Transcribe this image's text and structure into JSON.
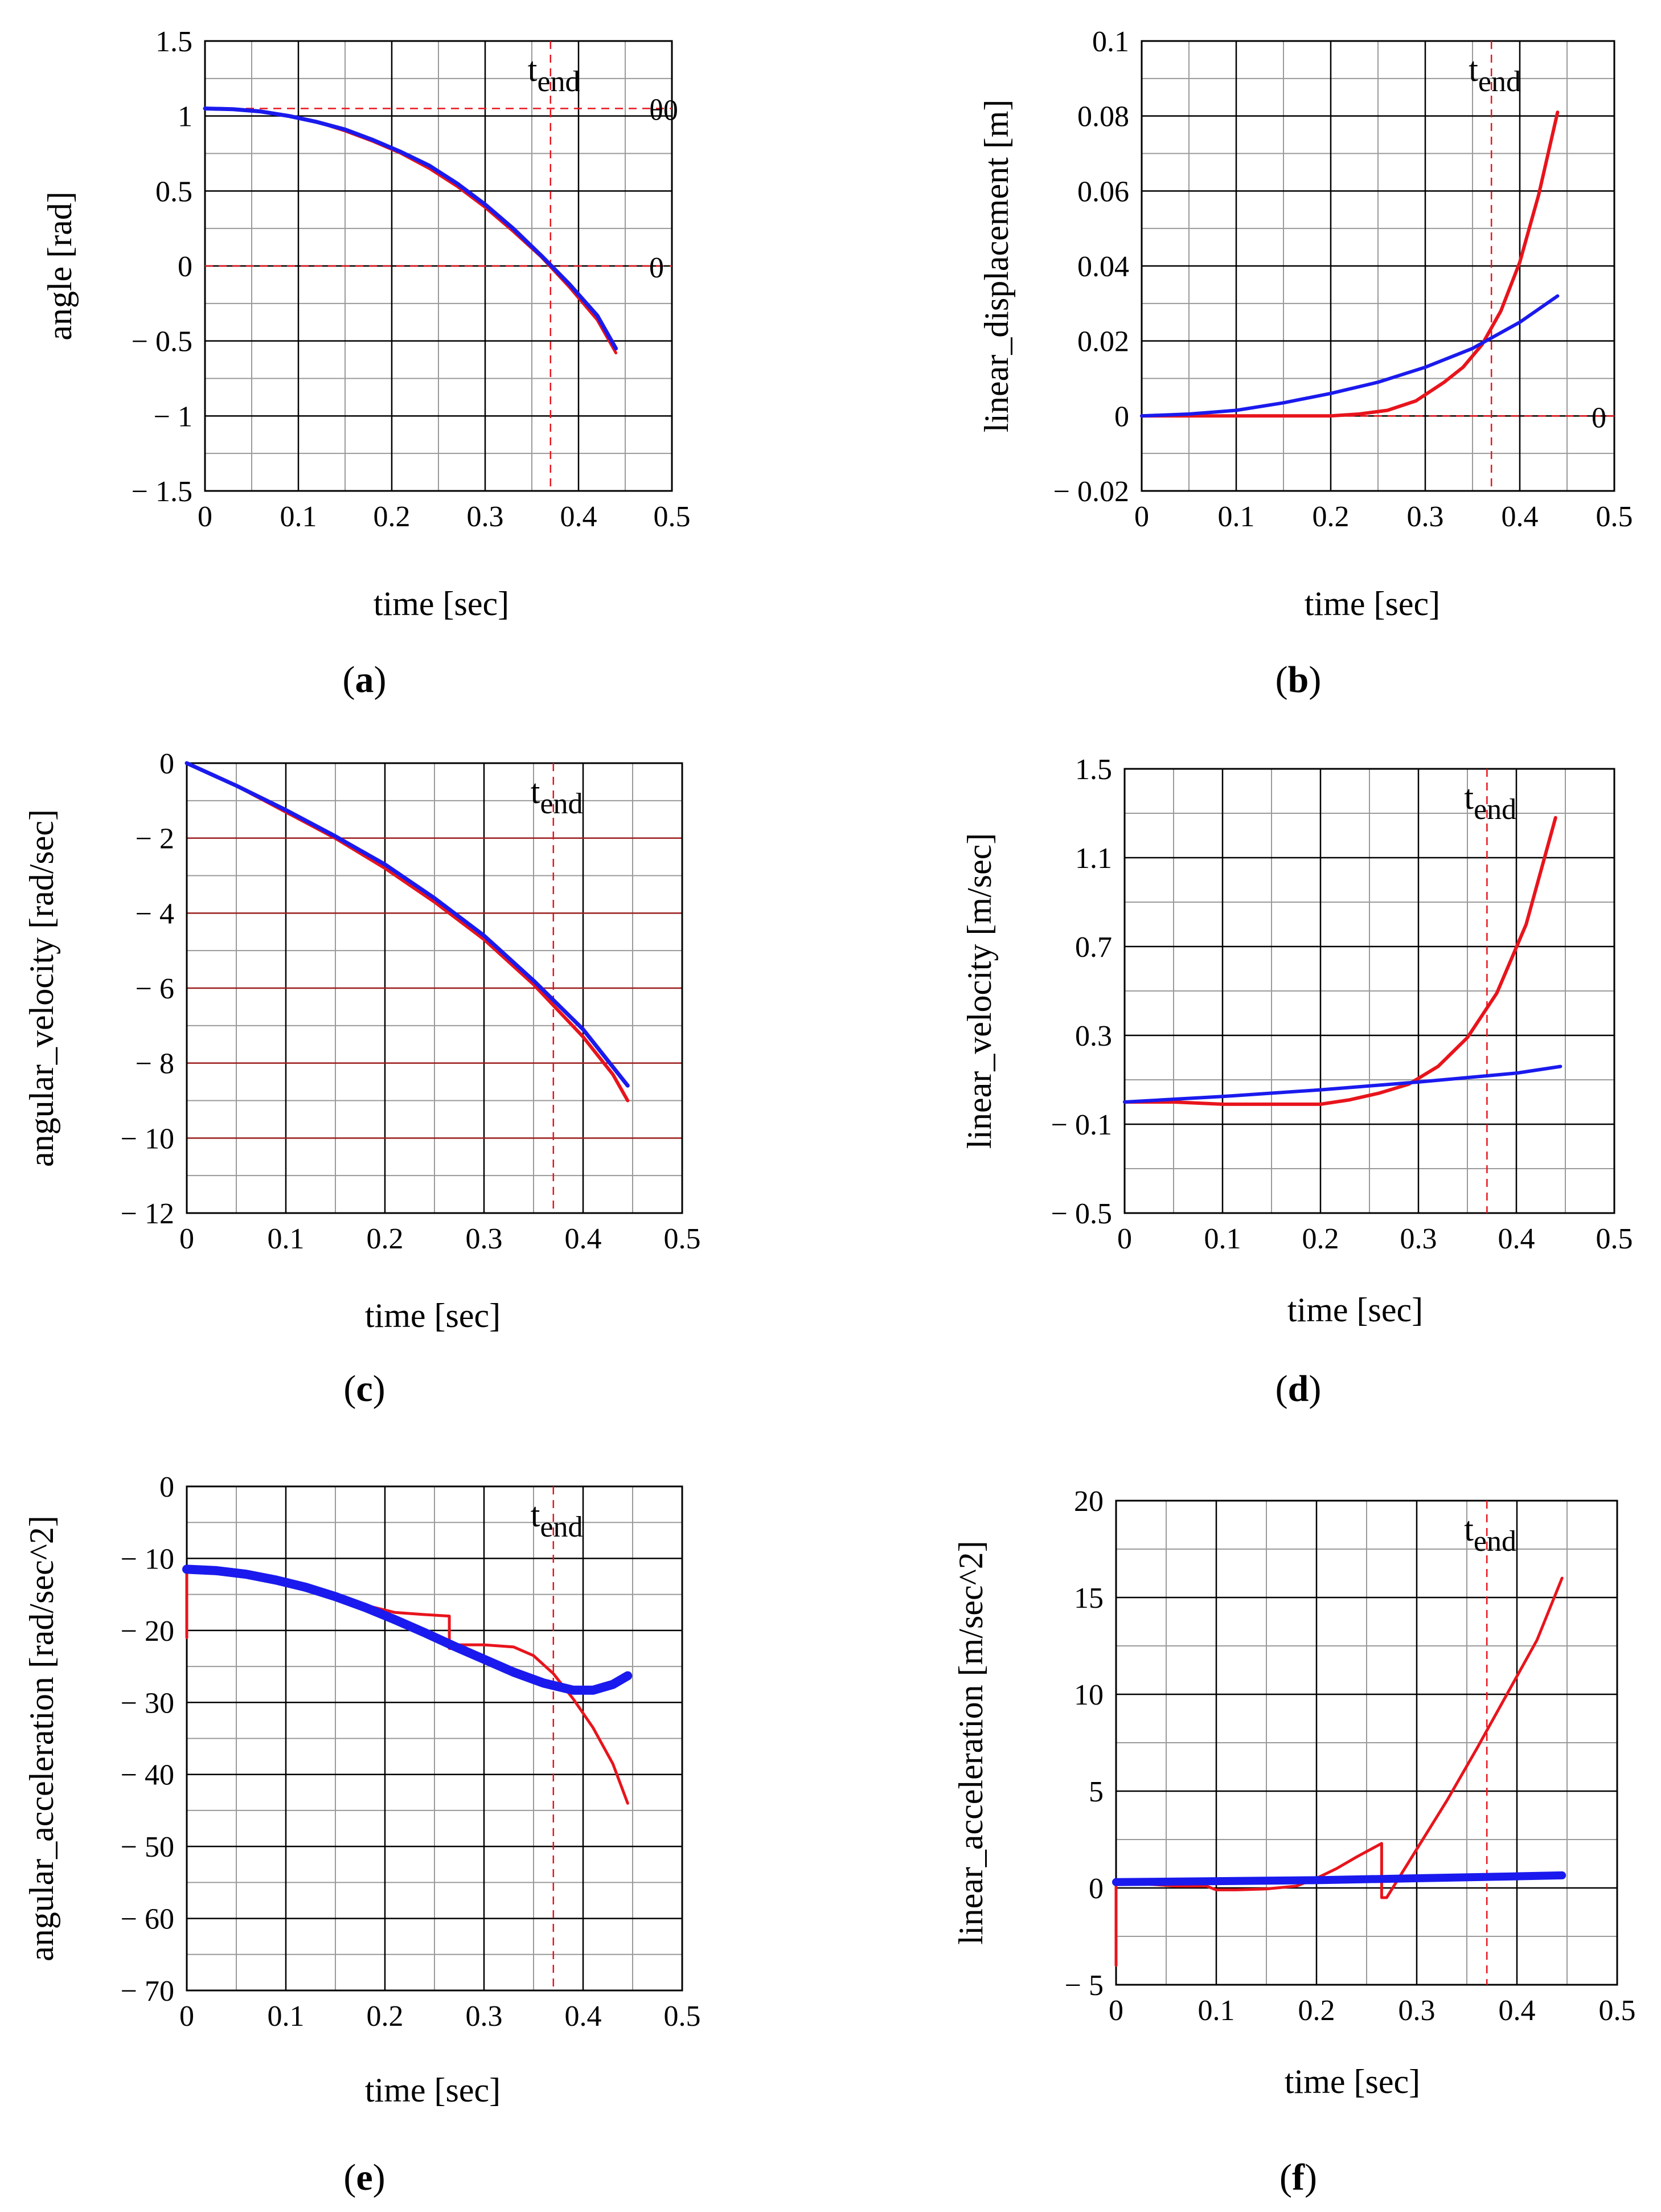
{
  "figure": {
    "marker_label": "t",
    "marker_sub": "end",
    "colors": {
      "red": "#e8141c",
      "blue": "#1a1aee",
      "grid": "#000000",
      "minor_grid": "#9a9a9a"
    }
  },
  "chart_data": [
    {
      "id": "a",
      "type": "line",
      "panel_label": "a",
      "xlabel": "time [sec]",
      "ylabel": "angle [rad]",
      "xlim": [
        0,
        0.5
      ],
      "ylim": [
        -1.5,
        1.5
      ],
      "xticks": [
        0,
        0.1,
        0.2,
        0.3,
        0.4,
        0.5
      ],
      "xtick_labels": [
        "0",
        "0.1",
        "0.2",
        "0.3",
        "0.4",
        "0.5"
      ],
      "yticks": [
        -1.5,
        -1,
        -0.5,
        0,
        0.5,
        1,
        1.5
      ],
      "ytick_labels": [
        "− 1.5",
        "− 1",
        "− 0.5",
        "0",
        "0.5",
        "1",
        "1.5"
      ],
      "grid_style": "black",
      "t_end": 0.37,
      "hlines": [
        {
          "y": 1.05,
          "label": "θ0",
          "color": "red",
          "dash": true
        },
        {
          "y": 0,
          "label": "0",
          "color": "red",
          "dash": true
        }
      ],
      "series": [
        {
          "name": "red",
          "color": "red",
          "width": 5,
          "x": [
            0,
            0.03,
            0.06,
            0.09,
            0.12,
            0.15,
            0.18,
            0.21,
            0.24,
            0.27,
            0.3,
            0.33,
            0.36,
            0.39,
            0.42,
            0.44
          ],
          "y": [
            1.05,
            1.045,
            1.03,
            1.0,
            0.96,
            0.9,
            0.83,
            0.75,
            0.65,
            0.53,
            0.39,
            0.23,
            0.06,
            -0.14,
            -0.36,
            -0.58
          ]
        },
        {
          "name": "blue",
          "color": "blue",
          "width": 7,
          "x": [
            0,
            0.03,
            0.06,
            0.09,
            0.12,
            0.15,
            0.18,
            0.21,
            0.24,
            0.27,
            0.3,
            0.33,
            0.36,
            0.39,
            0.42,
            0.44
          ],
          "y": [
            1.05,
            1.045,
            1.03,
            1.0,
            0.96,
            0.91,
            0.84,
            0.76,
            0.67,
            0.55,
            0.41,
            0.25,
            0.07,
            -0.12,
            -0.33,
            -0.55
          ]
        }
      ]
    },
    {
      "id": "b",
      "type": "line",
      "panel_label": "b",
      "xlabel": "time [sec]",
      "ylabel": "linear_displacement [m]",
      "xlim": [
        0,
        0.5
      ],
      "ylim": [
        -0.02,
        0.1
      ],
      "xticks": [
        0,
        0.1,
        0.2,
        0.3,
        0.4,
        0.5
      ],
      "xtick_labels": [
        "0",
        "0.1",
        "0.2",
        "0.3",
        "0.4",
        "0.5"
      ],
      "yticks": [
        -0.02,
        0,
        0.02,
        0.04,
        0.06,
        0.08,
        0.1
      ],
      "ytick_labels": [
        "− 0.02",
        "0",
        "0.02",
        "0.04",
        "0.06",
        "0.08",
        "0.1"
      ],
      "grid_style": "black",
      "t_end": 0.37,
      "hlines": [
        {
          "y": 0,
          "label": "0",
          "color": "red",
          "dash": true
        }
      ],
      "series": [
        {
          "name": "red",
          "color": "red",
          "width": 6,
          "x": [
            0,
            0.05,
            0.1,
            0.15,
            0.2,
            0.23,
            0.26,
            0.29,
            0.32,
            0.34,
            0.36,
            0.38,
            0.4,
            0.42,
            0.44
          ],
          "y": [
            0,
            0,
            0,
            0,
            0,
            0.0005,
            0.0015,
            0.004,
            0.009,
            0.013,
            0.019,
            0.028,
            0.041,
            0.059,
            0.081
          ]
        },
        {
          "name": "blue",
          "color": "blue",
          "width": 6,
          "x": [
            0,
            0.05,
            0.1,
            0.15,
            0.2,
            0.25,
            0.3,
            0.35,
            0.4,
            0.44
          ],
          "y": [
            0,
            0.0005,
            0.0015,
            0.0035,
            0.006,
            0.009,
            0.013,
            0.018,
            0.025,
            0.032
          ]
        }
      ]
    },
    {
      "id": "c",
      "type": "line",
      "panel_label": "c",
      "xlabel": "time [sec]",
      "ylabel": "angular_velocity [rad/sec]",
      "xlim": [
        0,
        0.5
      ],
      "ylim": [
        -12,
        0
      ],
      "xticks": [
        0,
        0.1,
        0.2,
        0.3,
        0.4,
        0.5
      ],
      "xtick_labels": [
        "0",
        "0.1",
        "0.2",
        "0.3",
        "0.4",
        "0.5"
      ],
      "yticks": [
        -12,
        -10,
        -8,
        -6,
        -4,
        -2,
        0
      ],
      "ytick_labels": [
        "− 12",
        "− 10",
        "− 8",
        "− 6",
        "− 4",
        "− 2",
        "0"
      ],
      "grid_style": "red",
      "t_end": 0.37,
      "hlines": [],
      "series": [
        {
          "name": "red",
          "color": "red",
          "width": 6,
          "x": [
            0,
            0.05,
            0.1,
            0.15,
            0.2,
            0.25,
            0.3,
            0.35,
            0.4,
            0.43,
            0.445
          ],
          "y": [
            0,
            -0.6,
            -1.3,
            -2.0,
            -2.8,
            -3.7,
            -4.7,
            -5.9,
            -7.3,
            -8.3,
            -9.0
          ]
        },
        {
          "name": "blue",
          "color": "blue",
          "width": 7,
          "x": [
            0,
            0.05,
            0.1,
            0.15,
            0.2,
            0.25,
            0.3,
            0.35,
            0.4,
            0.445
          ],
          "y": [
            0,
            -0.6,
            -1.25,
            -1.95,
            -2.7,
            -3.6,
            -4.6,
            -5.8,
            -7.1,
            -8.6
          ]
        }
      ]
    },
    {
      "id": "d",
      "type": "line",
      "panel_label": "d",
      "xlabel": "time [sec]",
      "ylabel": "linear_velocity [m/sec]",
      "xlim": [
        0,
        0.5
      ],
      "ylim": [
        -0.5,
        1.5
      ],
      "xticks": [
        0,
        0.1,
        0.2,
        0.3,
        0.4,
        0.5
      ],
      "xtick_labels": [
        "0",
        "0.1",
        "0.2",
        "0.3",
        "0.4",
        "0.5"
      ],
      "yticks": [
        -0.5,
        -0.1,
        0.3,
        0.7,
        1.1,
        1.5
      ],
      "ytick_labels": [
        "− 0.5",
        "− 0.1",
        "0.3",
        "0.7",
        "1.1",
        "1.5"
      ],
      "grid_style": "black",
      "t_end": 0.37,
      "hlines": [],
      "series": [
        {
          "name": "red",
          "color": "red",
          "width": 6,
          "x": [
            0,
            0.05,
            0.1,
            0.15,
            0.2,
            0.23,
            0.26,
            0.29,
            0.32,
            0.35,
            0.38,
            0.41,
            0.44
          ],
          "y": [
            0.0,
            0.0,
            -0.01,
            -0.01,
            -0.01,
            0.01,
            0.04,
            0.08,
            0.16,
            0.29,
            0.49,
            0.8,
            1.28
          ]
        },
        {
          "name": "blue",
          "color": "blue",
          "width": 6,
          "x": [
            0,
            0.1,
            0.2,
            0.3,
            0.4,
            0.445
          ],
          "y": [
            0,
            0.025,
            0.055,
            0.09,
            0.13,
            0.16
          ]
        }
      ]
    },
    {
      "id": "e",
      "type": "line",
      "panel_label": "e",
      "xlabel": "time [sec]",
      "ylabel": "angular_acceleration [rad/sec^2]",
      "xlim": [
        0,
        0.5
      ],
      "ylim": [
        -70,
        0
      ],
      "xticks": [
        0,
        0.1,
        0.2,
        0.3,
        0.4,
        0.5
      ],
      "xtick_labels": [
        "0",
        "0.1",
        "0.2",
        "0.3",
        "0.4",
        "0.5"
      ],
      "yticks": [
        -70,
        -60,
        -50,
        -40,
        -30,
        -20,
        -10,
        0
      ],
      "ytick_labels": [
        "− 70",
        "− 60",
        "− 50",
        "− 40",
        "− 30",
        "− 20",
        "− 10",
        "0"
      ],
      "grid_style": "black",
      "t_end": 0.37,
      "hlines": [],
      "series": [
        {
          "name": "red",
          "color": "red",
          "width": 5,
          "x": [
            0,
            0,
            0.03,
            0.06,
            0.09,
            0.12,
            0.15,
            0.18,
            0.21,
            0.24,
            0.265,
            0.265,
            0.27,
            0.27,
            0.3,
            0.33,
            0.35,
            0.37,
            0.39,
            0.41,
            0.43,
            0.445
          ],
          "y": [
            -21,
            -11.5,
            -11.8,
            -12.3,
            -13.2,
            -14.3,
            -15.5,
            -16.5,
            -17.5,
            -17.8,
            -18.0,
            -22.5,
            -22.5,
            -22.0,
            -22.0,
            -22.3,
            -23.5,
            -26.0,
            -29.5,
            -33.5,
            -38.5,
            -44.0
          ]
        },
        {
          "name": "blue",
          "color": "blue",
          "width": 16,
          "x": [
            0.0,
            0.03,
            0.06,
            0.09,
            0.12,
            0.15,
            0.18,
            0.21,
            0.24,
            0.27,
            0.3,
            0.33,
            0.36,
            0.39,
            0.41,
            0.43,
            0.445
          ],
          "y": [
            -11.5,
            -11.7,
            -12.2,
            -13.0,
            -14.0,
            -15.3,
            -16.8,
            -18.5,
            -20.3,
            -22.2,
            -24.0,
            -25.8,
            -27.3,
            -28.3,
            -28.3,
            -27.5,
            -26.3
          ]
        }
      ]
    },
    {
      "id": "f",
      "type": "line",
      "panel_label": "f",
      "xlabel": "time [sec]",
      "ylabel": "linear_acceleration [m/sec^2]",
      "xlim": [
        0,
        0.5
      ],
      "ylim": [
        -5,
        20
      ],
      "xticks": [
        0,
        0.1,
        0.2,
        0.3,
        0.4,
        0.5
      ],
      "xtick_labels": [
        "0",
        "0.1",
        "0.2",
        "0.3",
        "0.4",
        "0.5"
      ],
      "yticks": [
        -5,
        0,
        5,
        10,
        15,
        20
      ],
      "ytick_labels": [
        "− 5",
        "0",
        "5",
        "10",
        "15",
        "20"
      ],
      "grid_style": "black",
      "t_end": 0.37,
      "hlines": [],
      "series": [
        {
          "name": "red",
          "color": "red",
          "width": 5,
          "x": [
            0,
            0,
            0.03,
            0.06,
            0.09,
            0.1,
            0.12,
            0.15,
            0.18,
            0.2,
            0.22,
            0.24,
            0.265,
            0.265,
            0.27,
            0.3,
            0.33,
            0.36,
            0.39,
            0.42,
            0.445
          ],
          "y": [
            -4,
            0.3,
            0.2,
            0.1,
            0.1,
            -0.1,
            -0.1,
            -0.05,
            0.1,
            0.5,
            1.0,
            1.6,
            2.3,
            -0.5,
            -0.5,
            2.0,
            4.5,
            7.2,
            10.0,
            12.8,
            16.0
          ]
        },
        {
          "name": "blue",
          "color": "blue",
          "width": 14,
          "x": [
            0,
            0.1,
            0.2,
            0.3,
            0.4,
            0.445
          ],
          "y": [
            0.3,
            0.35,
            0.4,
            0.5,
            0.6,
            0.65
          ]
        }
      ]
    }
  ]
}
